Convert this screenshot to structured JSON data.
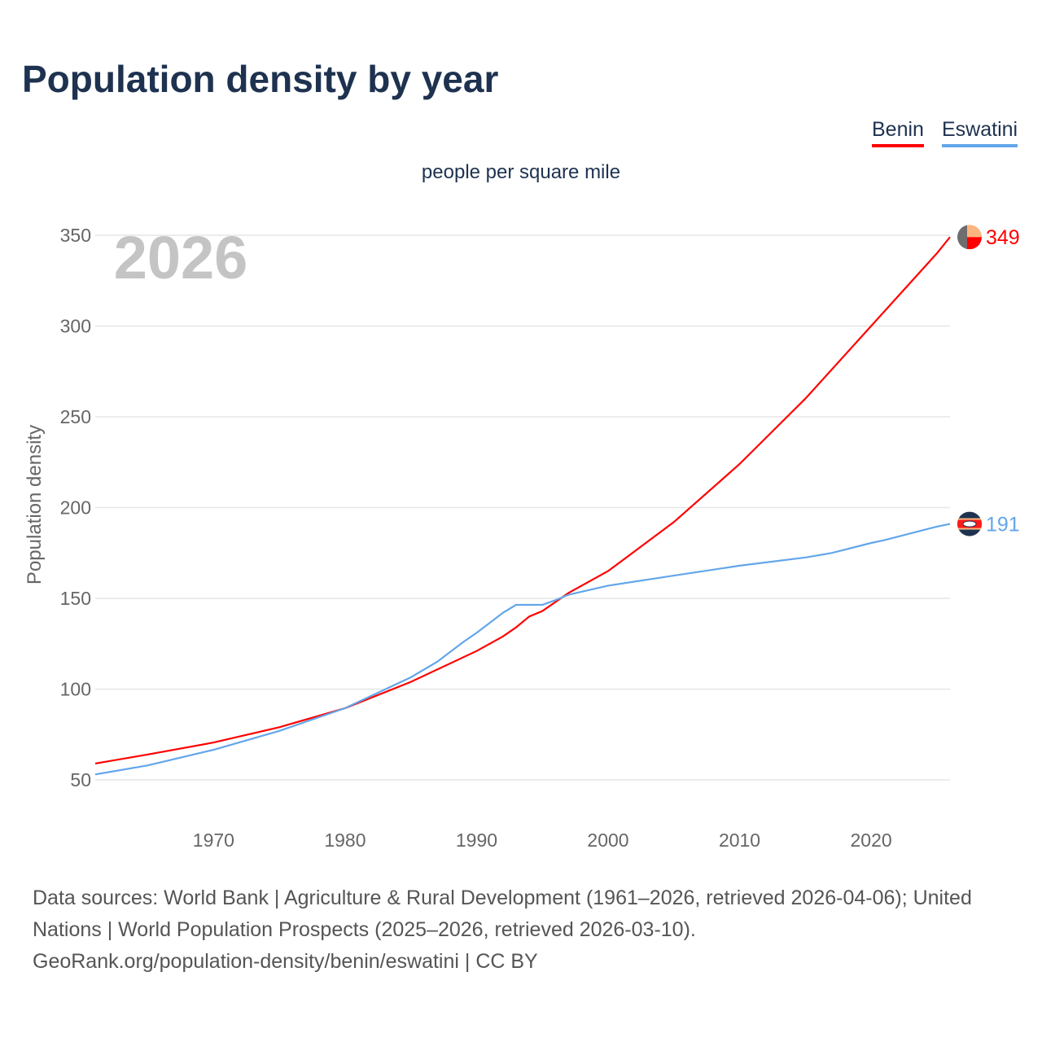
{
  "title": "Population density by year",
  "subtitle": "people per square mile",
  "year_watermark": "2026",
  "footer": {
    "line1": "Data sources: World Bank | Agriculture & Rural Development (1961–2026, retrieved 2026-04-06); United Nations | World Population Prospects (2025–2026, retrieved 2026-03-10).",
    "line2": "GeoRank.org/population-density/benin/eswatini | CC BY"
  },
  "chart_data": {
    "type": "line",
    "title": "Population density by year",
    "ylabel": "Population density",
    "xlabel": "",
    "xlim": [
      1961,
      2026
    ],
    "ylim": [
      50,
      350
    ],
    "grid": true,
    "legend_position": "top-right",
    "x_ticks": [
      1970,
      1980,
      1990,
      2000,
      2010,
      2020
    ],
    "y_ticks": [
      50,
      100,
      150,
      200,
      250,
      300,
      350
    ],
    "series": [
      {
        "name": "Benin",
        "color": "#ff0000",
        "end_label": "349",
        "x": [
          1961,
          1965,
          1970,
          1975,
          1980,
          1985,
          1990,
          1992,
          1993,
          1994,
          1995,
          1997,
          2000,
          2005,
          2010,
          2015,
          2020,
          2025,
          2026
        ],
        "values": [
          59,
          64,
          70.6,
          79,
          89.5,
          104,
          121,
          129,
          134,
          140,
          143,
          153,
          165,
          192,
          224,
          260,
          300,
          340,
          349
        ]
      },
      {
        "name": "Eswatini",
        "color": "#63a6ea",
        "end_label": "191",
        "x": [
          1961,
          1965,
          1970,
          1975,
          1980,
          1985,
          1987,
          1989,
          1990,
          1992,
          1993,
          1995,
          1996,
          1997,
          2000,
          2005,
          2010,
          2015,
          2017,
          2020,
          2021,
          2025,
          2026
        ],
        "values": [
          53,
          58,
          66.6,
          77,
          89.5,
          106.5,
          115,
          126,
          131,
          142,
          146.4,
          146.4,
          149,
          152,
          157,
          162.5,
          168,
          172.5,
          175,
          180.5,
          182,
          189.5,
          191
        ]
      }
    ]
  }
}
